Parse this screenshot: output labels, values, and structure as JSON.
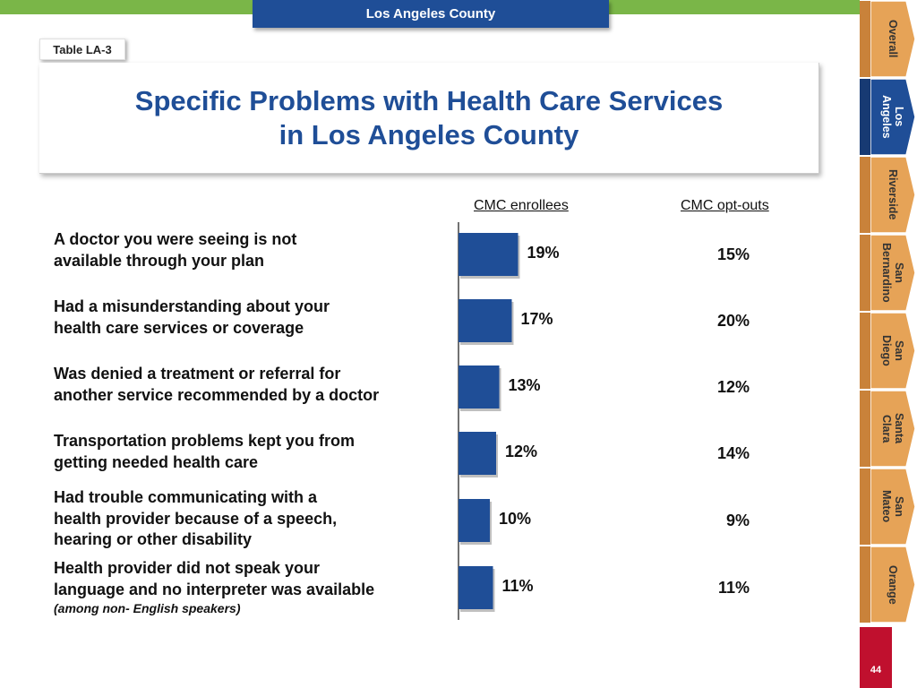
{
  "header": {
    "county_banner": "Los Angeles County",
    "table_label": "Table LA-3",
    "title_line1": "Specific Problems with Health Care Services",
    "title_line2": "in Los Angeles County"
  },
  "side_tabs": [
    {
      "label": "Overall",
      "active": false
    },
    {
      "label": "Los\nAngeles",
      "active": true
    },
    {
      "label": "Riverside",
      "active": false
    },
    {
      "label": "San\nBernardino",
      "active": false
    },
    {
      "label": "San\nDiego",
      "active": false
    },
    {
      "label": "Santa\nClara",
      "active": false
    },
    {
      "label": "San\nMateo",
      "active": false
    },
    {
      "label": "Orange",
      "active": false
    }
  ],
  "page_number": "44",
  "colors": {
    "green": "#7ab648",
    "navy": "#1f4e97",
    "bar": "#1f4e97",
    "tab_orange": "#e6a357",
    "tab_active": "#1f4e97",
    "page_red": "#c0102e"
  },
  "chart_data": {
    "type": "bar",
    "orientation": "horizontal",
    "title": "Specific Problems with Health Care Services in Los Angeles County",
    "columns": {
      "enrollees": "CMC enrollees",
      "optouts": "CMC opt-outs"
    },
    "categories": [
      {
        "line1": "A doctor you were seeing is not",
        "line2": "available through your plan",
        "note": ""
      },
      {
        "line1": "Had a misunderstanding about your",
        "line2": "health care services or coverage",
        "note": ""
      },
      {
        "line1": "Was denied a treatment or referral for",
        "line2": "another service recommended by a doctor",
        "note": ""
      },
      {
        "line1": "Transportation problems kept you from",
        "line2": "getting needed health care",
        "note": ""
      },
      {
        "line1": "Had trouble communicating with a",
        "line2": "health provider because of a speech,",
        "line3": "hearing or other disability",
        "note": ""
      },
      {
        "line1": "Health provider did not speak your",
        "line2": "language and no interpreter was available",
        "note": "(among non- English speakers)"
      }
    ],
    "series": [
      {
        "name": "CMC enrollees",
        "values": [
          19,
          17,
          13,
          12,
          10,
          11
        ],
        "labels": [
          "19%",
          "17%",
          "13%",
          "12%",
          "10%",
          "11%"
        ]
      },
      {
        "name": "CMC opt-outs",
        "values": [
          15,
          20,
          12,
          14,
          9,
          11
        ],
        "labels": [
          "15%",
          "20%",
          "12%",
          "14%",
          "9%",
          "11%"
        ]
      }
    ],
    "xlim": [
      0,
      100
    ],
    "grid": false
  }
}
